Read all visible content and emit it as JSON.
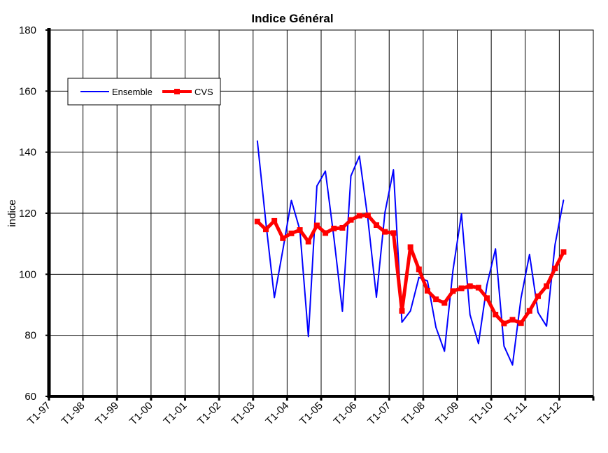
{
  "chart_data": {
    "type": "line",
    "title": "Indice Général",
    "xlabel": "",
    "ylabel": "indice",
    "ylim": [
      60,
      180
    ],
    "yticks": [
      60,
      80,
      100,
      120,
      140,
      160,
      180
    ],
    "xticks": [
      "T1-97",
      "T1-98",
      "T1-99",
      "T1-00",
      "T1-01",
      "T1-02",
      "T1-03",
      "T1-04",
      "T1-05",
      "T1-06",
      "T1-07",
      "T1-08",
      "T1-09",
      "T1-10",
      "T1-11",
      "T1-12"
    ],
    "x_range_years": [
      1997,
      2013
    ],
    "grid": true,
    "legend_position": "top-left",
    "series_start_quarter": "2003Q1",
    "series": [
      {
        "name": "Ensemble",
        "color": "#0000ff",
        "values": [
          143.7,
          117,
          92.4,
          108,
          124.2,
          114.5,
          79.6,
          128.9,
          133.8,
          112,
          87.9,
          132.2,
          138.7,
          118,
          92.5,
          120.2,
          134.2,
          84.3,
          88,
          99,
          97.8,
          82.6,
          74.8,
          101.3,
          119.8,
          86.8,
          77.3,
          96.6,
          108.3,
          76.5,
          70.3,
          92.2,
          106.5,
          87.5,
          83,
          109.7,
          124.3
        ]
      },
      {
        "name": "CVS",
        "color": "#ff0000",
        "values": [
          117.3,
          114.7,
          117.5,
          111.8,
          113.4,
          114.5,
          110.7,
          116,
          113.5,
          115,
          115.2,
          117.8,
          119.2,
          119.3,
          116.1,
          113.9,
          113.5,
          88,
          108.9,
          101.6,
          94.6,
          91.8,
          90.6,
          94.5,
          95.4,
          96.1,
          95.6,
          92.2,
          86.8,
          83.9,
          85.1,
          84,
          88,
          92.8,
          96.1,
          101.9,
          107.3
        ]
      }
    ]
  }
}
